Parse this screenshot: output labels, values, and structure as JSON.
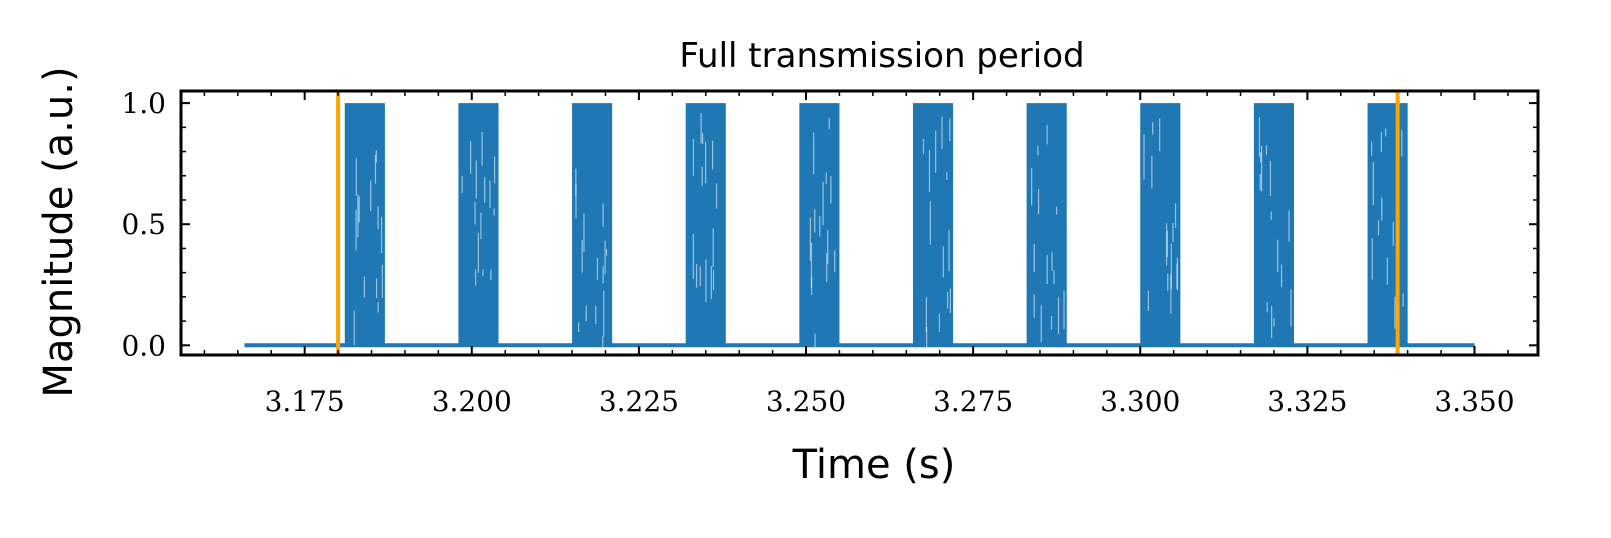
{
  "chart_data": {
    "type": "line",
    "title": "Full transmission period",
    "xlabel": "Time (s)",
    "ylabel": "Magnitude (a.u.)",
    "xlim": [
      3.1565,
      3.3595
    ],
    "ylim": [
      -0.04,
      1.05
    ],
    "x_ticks": [
      3.175,
      3.2,
      3.225,
      3.25,
      3.275,
      3.3,
      3.325,
      3.35
    ],
    "x_tick_labels": [
      "3.175",
      "3.200",
      "3.225",
      "3.250",
      "3.275",
      "3.300",
      "3.325",
      "3.350"
    ],
    "y_ticks": [
      0.0,
      0.5,
      1.0
    ],
    "y_tick_labels": [
      "0.0",
      "0.5",
      "1.0"
    ],
    "grid": false,
    "series": [
      {
        "baseline": {
          "x_start": 3.166,
          "x_end": 3.35,
          "value": 0.0
        },
        "bursts": [
          {
            "start": 3.181,
            "end": 3.187,
            "min": 0.0,
            "max": 1.0
          },
          {
            "start": 3.198,
            "end": 3.204,
            "min": 0.0,
            "max": 1.0
          },
          {
            "start": 3.215,
            "end": 3.221,
            "min": 0.0,
            "max": 1.0
          },
          {
            "start": 3.232,
            "end": 3.238,
            "min": 0.0,
            "max": 1.0
          },
          {
            "start": 3.249,
            "end": 3.255,
            "min": 0.0,
            "max": 1.0
          },
          {
            "start": 3.266,
            "end": 3.272,
            "min": 0.0,
            "max": 1.0
          },
          {
            "start": 3.283,
            "end": 3.289,
            "min": 0.0,
            "max": 1.0
          },
          {
            "start": 3.3,
            "end": 3.306,
            "min": 0.0,
            "max": 1.0
          },
          {
            "start": 3.317,
            "end": 3.323,
            "min": 0.0,
            "max": 1.0
          },
          {
            "start": 3.334,
            "end": 3.34,
            "min": 0.0,
            "max": 1.0
          }
        ]
      }
    ],
    "vertical_markers": [
      {
        "x": 3.18
      },
      {
        "x": 3.3385
      }
    ],
    "colors": {
      "signal": "#1f77b4",
      "marker": "#ffa500",
      "axes": "#000000"
    }
  }
}
